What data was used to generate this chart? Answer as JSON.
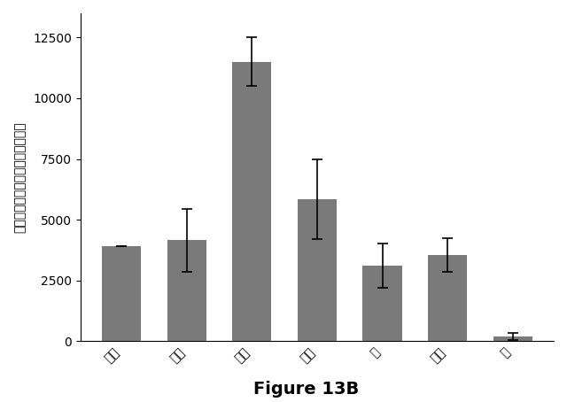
{
  "categories": [
    "血液",
    "腫瑞",
    "肝臓",
    "腎臓",
    "肺",
    "心臓",
    "脳"
  ],
  "values": [
    3900,
    4150,
    11500,
    5850,
    3100,
    3550,
    200
  ],
  "errors": [
    0,
    1300,
    1000,
    1650,
    900,
    700,
    150
  ],
  "bar_color": "#7a7a7a",
  "ylabel": "組織１グラム当たりのナノグラム",
  "title": "Figure 13B",
  "ylim": [
    0,
    13500
  ],
  "yticks": [
    0,
    2500,
    5000,
    7500,
    10000,
    12500
  ],
  "background_color": "#ffffff",
  "title_fontsize": 14,
  "ylabel_fontsize": 10,
  "tick_fontsize": 10,
  "bar_width": 0.6
}
